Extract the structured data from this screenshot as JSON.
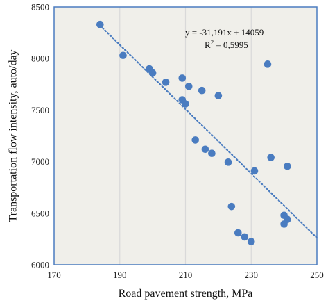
{
  "chart_data": {
    "type": "scatter",
    "xlabel": "Road pavement strength, MPa",
    "ylabel": "Transportation flow intensity, auto/day",
    "xlim": [
      170,
      250
    ],
    "ylim": [
      6000,
      8500
    ],
    "x_ticks": [
      "170",
      "190",
      "210",
      "230",
      "250"
    ],
    "y_ticks": [
      "6000",
      "6500",
      "7000",
      "7500",
      "8000",
      "8500"
    ],
    "x_tick_values": [
      170,
      190,
      210,
      230,
      250
    ],
    "y_tick_values": [
      6000,
      6500,
      7000,
      7500,
      8000,
      8500
    ],
    "grid": "vertical",
    "points": [
      {
        "x": 184,
        "y": 8330
      },
      {
        "x": 191,
        "y": 8030
      },
      {
        "x": 199,
        "y": 7900
      },
      {
        "x": 200,
        "y": 7860
      },
      {
        "x": 204,
        "y": 7770
      },
      {
        "x": 209,
        "y": 7810
      },
      {
        "x": 209,
        "y": 7600
      },
      {
        "x": 210,
        "y": 7560
      },
      {
        "x": 211,
        "y": 7730
      },
      {
        "x": 215,
        "y": 7690
      },
      {
        "x": 220,
        "y": 7640
      },
      {
        "x": 213,
        "y": 7210
      },
      {
        "x": 216,
        "y": 7120
      },
      {
        "x": 218,
        "y": 7080
      },
      {
        "x": 223,
        "y": 6995
      },
      {
        "x": 231,
        "y": 6910
      },
      {
        "x": 224,
        "y": 6565
      },
      {
        "x": 226,
        "y": 6310
      },
      {
        "x": 228,
        "y": 6270
      },
      {
        "x": 230,
        "y": 6225
      },
      {
        "x": 235,
        "y": 7945
      },
      {
        "x": 236,
        "y": 7040
      },
      {
        "x": 241,
        "y": 6955
      },
      {
        "x": 240,
        "y": 6480
      },
      {
        "x": 241,
        "y": 6440
      },
      {
        "x": 240,
        "y": 6395
      }
    ],
    "trendline": {
      "type": "linear",
      "slope": -31.191,
      "intercept": 14059,
      "x_range": [
        184,
        250
      ],
      "style": "dotted"
    },
    "annotations": {
      "equation": "y = -31,191x + 14059",
      "r_squared_prefix": "R",
      "r_squared_sup": "2",
      "r_squared_suffix": " = 0,5995"
    },
    "colors": {
      "point": "#4a7cc0",
      "trendline": "#4a7cc0",
      "plot_border": "#4a7cc0",
      "plot_background": "#f0efea",
      "grid": "#d9d9d9"
    }
  }
}
